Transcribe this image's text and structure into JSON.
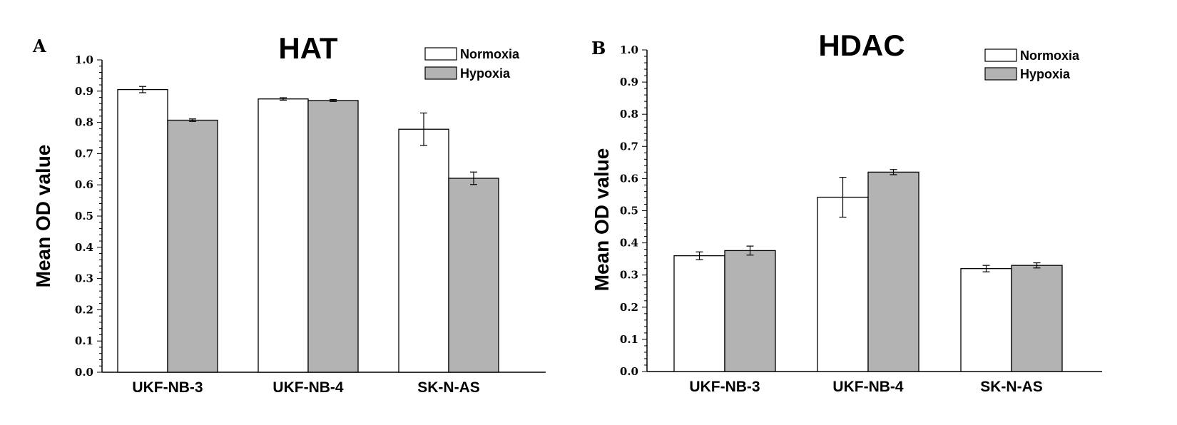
{
  "chart_data": [
    {
      "panel": "A",
      "type": "bar",
      "title": "HAT",
      "xlabel": "",
      "ylabel": "Mean OD value",
      "ylim": [
        0,
        1.0
      ],
      "yticks": [
        "0.0",
        "0.1",
        "0.2",
        "0.3",
        "0.4",
        "0.5",
        "0.6",
        "0.7",
        "0.8",
        "0.9",
        "1.0"
      ],
      "categories": [
        "UKF-NB-3",
        "UKF-NB-4",
        "SK-N-AS"
      ],
      "series": [
        {
          "name": "Normoxia",
          "color": "#ffffff",
          "values": [
            0.905,
            0.875,
            0.778
          ],
          "errors": [
            0.01,
            0.004,
            0.052
          ]
        },
        {
          "name": "Hypoxia",
          "color": "#b3b3b3",
          "values": [
            0.807,
            0.87,
            0.621
          ],
          "errors": [
            0.004,
            0.003,
            0.02
          ]
        }
      ],
      "legend": "top-right",
      "grid": false
    },
    {
      "panel": "B",
      "type": "bar",
      "title": "HDAC",
      "xlabel": "",
      "ylabel": "Mean OD value",
      "ylim": [
        0,
        1.0
      ],
      "yticks": [
        "0.0",
        "0.1",
        "0.2",
        "0.3",
        "0.4",
        "0.5",
        "0.6",
        "0.7",
        "0.8",
        "0.9",
        "1.0"
      ],
      "categories": [
        "UKF-NB-3",
        "UKF-NB-4",
        "SK-N-AS"
      ],
      "series": [
        {
          "name": "Normoxia",
          "color": "#ffffff",
          "values": [
            0.36,
            0.542,
            0.32
          ],
          "errors": [
            0.012,
            0.062,
            0.01
          ]
        },
        {
          "name": "Hypoxia",
          "color": "#b3b3b3",
          "values": [
            0.376,
            0.62,
            0.33
          ],
          "errors": [
            0.014,
            0.008,
            0.008
          ]
        }
      ],
      "legend": "top-right",
      "grid": false
    }
  ]
}
